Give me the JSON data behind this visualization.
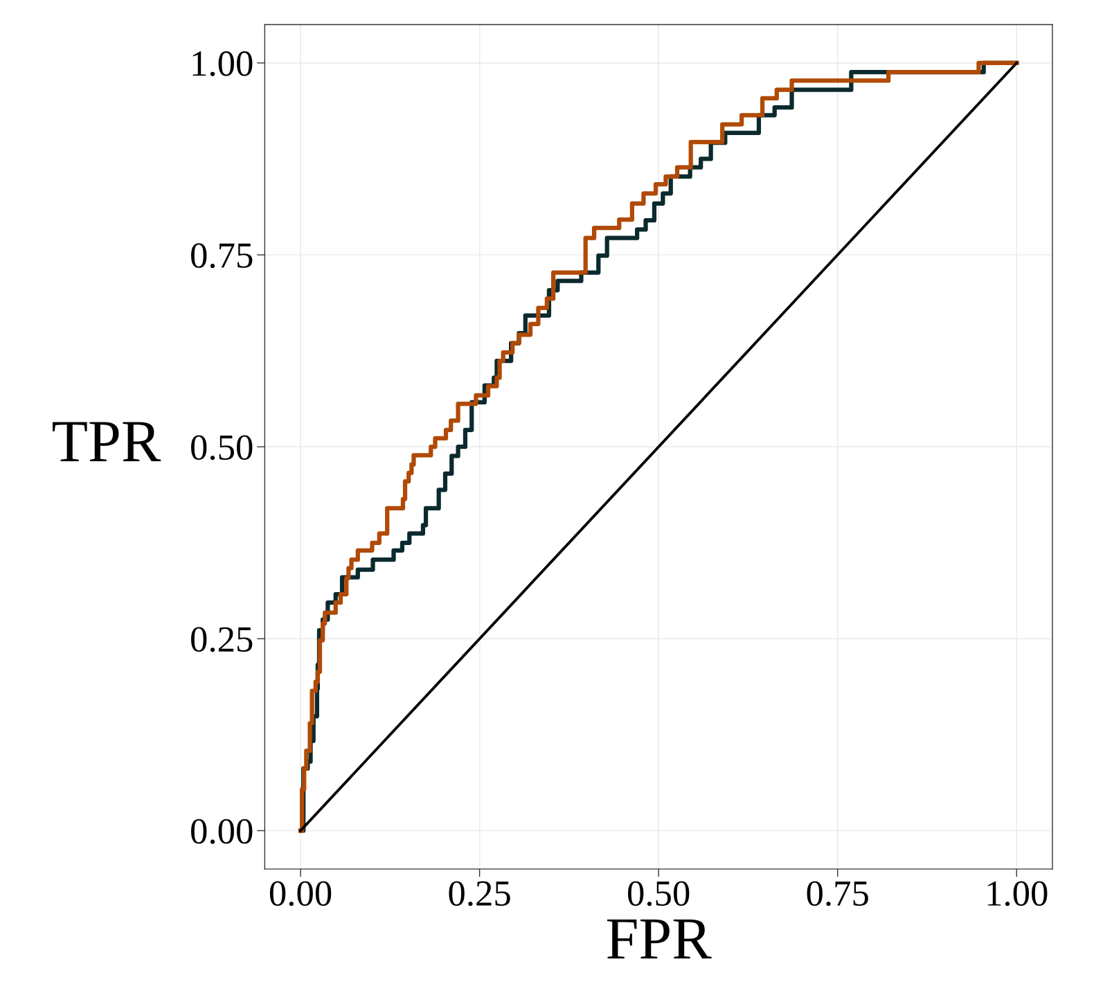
{
  "chart_data": {
    "type": "step",
    "xlabel": "FPR",
    "ylabel": "TPR",
    "xlim": [
      -0.05,
      1.05
    ],
    "ylim": [
      -0.05,
      1.05
    ],
    "xticks": [
      {
        "value": 0,
        "label": "0.00"
      },
      {
        "value": 0.25,
        "label": "0.25"
      },
      {
        "value": 0.5,
        "label": "0.50"
      },
      {
        "value": 0.75,
        "label": "0.75"
      },
      {
        "value": 1,
        "label": "1.00"
      }
    ],
    "yticks": [
      {
        "value": 0,
        "label": "0.00"
      },
      {
        "value": 0.25,
        "label": "0.25"
      },
      {
        "value": 0.5,
        "label": "0.50"
      },
      {
        "value": 0.75,
        "label": "0.75"
      },
      {
        "value": 1,
        "label": "1.00"
      }
    ],
    "grid": true,
    "legend": false,
    "marker": "none",
    "line_style": "solid",
    "series": [
      {
        "color": "#0b2a2e",
        "x": [
          0,
          0.004,
          0.01,
          0.014,
          0.018,
          0.023,
          0.024,
          0.026,
          0.031,
          0.038,
          0.049,
          0.058,
          0.08,
          0.101,
          0.13,
          0.142,
          0.152,
          0.171,
          0.175,
          0.193,
          0.202,
          0.211,
          0.22,
          0.23,
          0.239,
          0.257,
          0.27,
          0.274,
          0.294,
          0.305,
          0.314,
          0.347,
          0.359,
          0.392,
          0.416,
          0.428,
          0.47,
          0.482,
          0.494,
          0.506,
          0.517,
          0.544,
          0.559,
          0.573,
          0.593,
          0.64,
          0.662,
          0.686,
          0.769,
          0.954,
          1.0
        ],
        "values": [
          0,
          0.081,
          0.09,
          0.117,
          0.149,
          0.185,
          0.216,
          0.261,
          0.275,
          0.297,
          0.308,
          0.33,
          0.34,
          0.353,
          0.365,
          0.375,
          0.387,
          0.398,
          0.42,
          0.444,
          0.465,
          0.488,
          0.5,
          0.522,
          0.558,
          0.58,
          0.59,
          0.612,
          0.635,
          0.648,
          0.671,
          0.704,
          0.716,
          0.727,
          0.749,
          0.772,
          0.783,
          0.795,
          0.817,
          0.83,
          0.852,
          0.864,
          0.875,
          0.896,
          0.909,
          0.932,
          0.942,
          0.965,
          0.988,
          1.0,
          1.0
        ]
      },
      {
        "color": "#b04a06",
        "x": [
          0,
          0.002,
          0.005,
          0.008,
          0.013,
          0.016,
          0.021,
          0.024,
          0.027,
          0.031,
          0.034,
          0.049,
          0.056,
          0.064,
          0.067,
          0.071,
          0.08,
          0.1,
          0.11,
          0.121,
          0.121,
          0.143,
          0.146,
          0.151,
          0.155,
          0.158,
          0.182,
          0.188,
          0.203,
          0.21,
          0.22,
          0.245,
          0.262,
          0.274,
          0.278,
          0.283,
          0.296,
          0.305,
          0.321,
          0.332,
          0.344,
          0.353,
          0.398,
          0.41,
          0.445,
          0.463,
          0.479,
          0.496,
          0.51,
          0.526,
          0.545,
          0.589,
          0.616,
          0.645,
          0.665,
          0.686,
          0.821,
          0.947,
          1.0
        ],
        "values": [
          0,
          0.054,
          0.081,
          0.104,
          0.14,
          0.182,
          0.194,
          0.207,
          0.248,
          0.27,
          0.284,
          0.297,
          0.308,
          0.329,
          0.342,
          0.353,
          0.365,
          0.375,
          0.387,
          0.398,
          0.42,
          0.432,
          0.455,
          0.466,
          0.477,
          0.489,
          0.5,
          0.511,
          0.522,
          0.534,
          0.556,
          0.567,
          0.579,
          0.59,
          0.612,
          0.623,
          0.635,
          0.646,
          0.66,
          0.681,
          0.693,
          0.727,
          0.772,
          0.785,
          0.796,
          0.817,
          0.83,
          0.842,
          0.852,
          0.864,
          0.897,
          0.92,
          0.932,
          0.954,
          0.965,
          0.977,
          0.988,
          1.0,
          1.0
        ]
      },
      {
        "type": "line",
        "color": "#000000",
        "x": [
          0,
          1
        ],
        "values": [
          0,
          1
        ]
      }
    ]
  }
}
